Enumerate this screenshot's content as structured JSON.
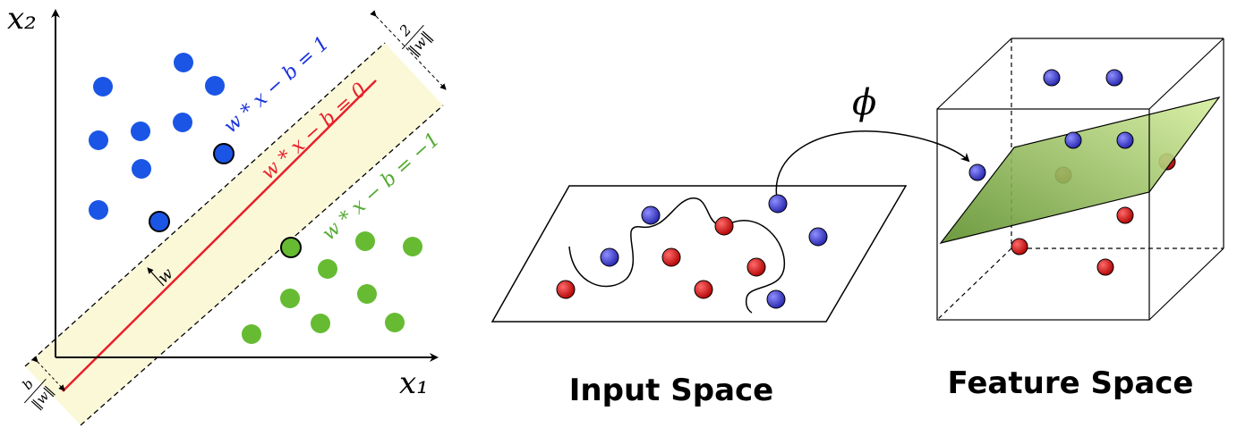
{
  "svm": {
    "x1_label": "x₁",
    "x2_label": "x₂",
    "upper_margin_label": "w * x − b = 1",
    "hyperplane_label": "w * x − b = 0",
    "lower_margin_label": "w * x − b = −1",
    "w_label": "w",
    "margin_width_num": "2",
    "margin_width_den": "‖w‖",
    "offset_num": "b",
    "offset_den": "‖w‖"
  },
  "kernel": {
    "phi_label": "ϕ",
    "input_space_label": "Input Space",
    "feature_space_label": "Feature Space"
  },
  "colors": {
    "class_blue": "#1a55e6",
    "class_green": "#66bb33",
    "hyperplane": "#e8202a",
    "upper_margin_text": "#1a33dd",
    "lower_margin_text": "#55aa33",
    "margin_band": "#fbf8d8",
    "point_blue_3d": "#3333bb",
    "point_red_3d": "#cc1111",
    "plane_green": "#9fc45a"
  }
}
